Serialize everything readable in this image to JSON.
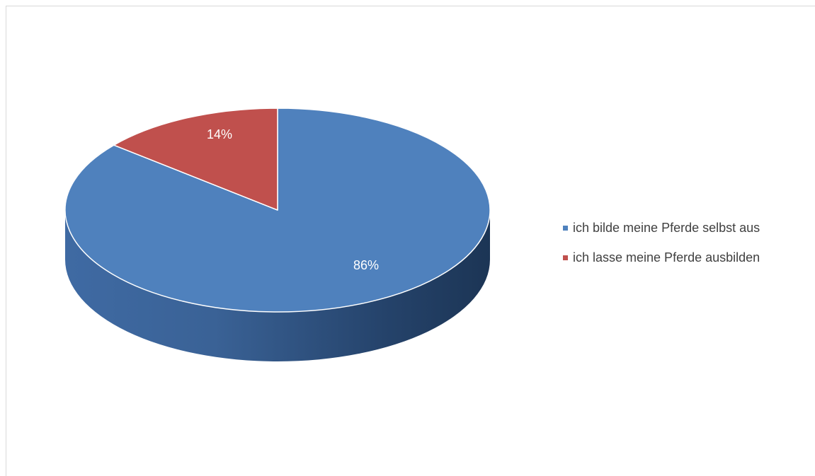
{
  "chart_data": {
    "type": "pie",
    "style": "3d",
    "title": "",
    "categories": [
      "ich bilde meine Pferde selbst aus",
      "ich lasse meine Pferde ausbilden"
    ],
    "values": [
      86,
      14
    ],
    "value_unit": "%",
    "data_labels": [
      "86%",
      "14%"
    ],
    "colors": [
      "#4f81bd",
      "#c0504d"
    ],
    "legend_position": "right"
  }
}
